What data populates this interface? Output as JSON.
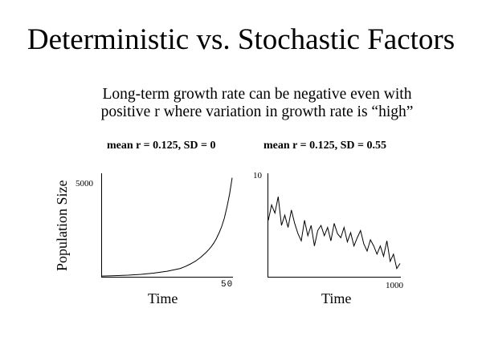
{
  "slide": {
    "title": "Deterministic vs. Stochastic Factors",
    "subtitle_line1": "Long-term growth rate can be negative even with",
    "subtitle_line2": "positive r where variation in growth rate is “high”"
  },
  "colors": {
    "line": "#000000",
    "background": "#ffffff"
  },
  "chart_data": [
    {
      "type": "line",
      "title": "mean r = 0.125, SD = 0",
      "xlabel": "Time",
      "ylabel": "Population Size",
      "ytick_labels": [
        "5000"
      ],
      "xtick_labels": [
        "50"
      ],
      "xlim": [
        0,
        50
      ],
      "ylim": [
        0,
        5600
      ],
      "grid": false,
      "series": [
        {
          "x": [
            0,
            5,
            10,
            15,
            20,
            25,
            30,
            32,
            34,
            36,
            38,
            40,
            41,
            42,
            43,
            44,
            45,
            46,
            47,
            48,
            49,
            50
          ],
          "values": [
            40,
            60,
            85,
            130,
            200,
            300,
            450,
            560,
            700,
            860,
            1070,
            1330,
            1480,
            1650,
            1850,
            2100,
            2400,
            2750,
            3200,
            3800,
            4500,
            5400
          ]
        }
      ]
    },
    {
      "type": "line",
      "title": "mean r = 0.125, SD = 0.55",
      "xlabel": "Time",
      "ylabel": "Population Size",
      "ytick_labels": [
        "10"
      ],
      "xtick_labels": [
        "1000"
      ],
      "xlim": [
        0,
        1000
      ],
      "ylim": [
        0,
        10
      ],
      "grid": false,
      "series": [
        {
          "x": [
            0,
            25,
            50,
            75,
            100,
            125,
            150,
            175,
            200,
            225,
            250,
            275,
            300,
            325,
            350,
            375,
            400,
            425,
            450,
            475,
            500,
            525,
            550,
            575,
            600,
            625,
            650,
            675,
            700,
            725,
            750,
            775,
            800,
            825,
            850,
            875,
            900,
            925,
            950,
            975,
            1000
          ],
          "values": [
            5.5,
            7.0,
            6.2,
            7.8,
            5.0,
            6.0,
            4.8,
            6.5,
            5.2,
            4.2,
            3.5,
            5.5,
            4.0,
            5.0,
            3.0,
            4.5,
            5.0,
            4.0,
            4.8,
            3.5,
            5.2,
            4.2,
            3.8,
            4.8,
            3.4,
            4.3,
            3.0,
            3.8,
            4.5,
            3.2,
            2.5,
            3.6,
            3.0,
            2.2,
            3.0,
            2.0,
            3.5,
            1.5,
            2.2,
            0.8,
            1.3
          ]
        }
      ]
    }
  ]
}
